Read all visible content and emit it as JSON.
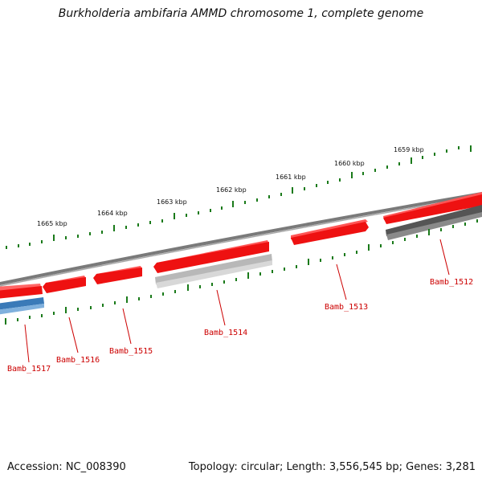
{
  "title": "Burkholderia ambifaria AMMD chromosome 1, complete genome",
  "footer": {
    "accession": "Accession: NC_008390",
    "stats": "Topology: circular; Length: 3,556,545 bp; Genes: 3,281"
  },
  "ticks": [
    "1665 kbp",
    "1664 kbp",
    "1663 kbp",
    "1662 kbp",
    "1661 kbp",
    "1660 kbp",
    "1659 kbp"
  ],
  "genes": [
    "Bamb_1517",
    "Bamb_1516",
    "Bamb_1515",
    "Bamb_1514",
    "Bamb_1513",
    "Bamb_1512"
  ],
  "colors": {
    "cds": "#ee1111",
    "cds_light": "#ff6666",
    "backbone": "#808080",
    "blue_feature": "#3a7ab8",
    "dark_feature": "#555555",
    "light_feature": "#bfbfbf",
    "ticks": "#1a7a1a",
    "labels": "#cc0000"
  },
  "icons": {
    "cds_arrow": "arrow-shape"
  }
}
